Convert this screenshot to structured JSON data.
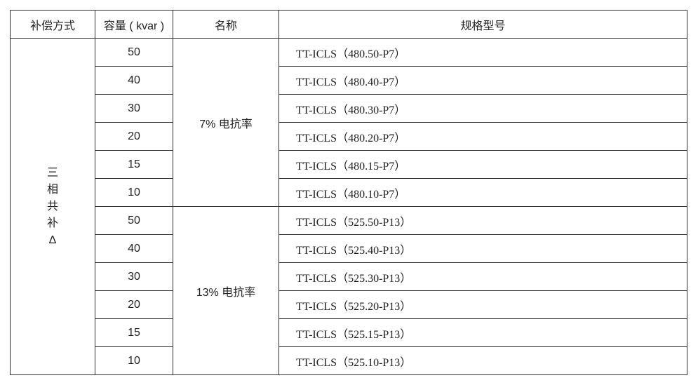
{
  "headers": [
    "补偿方式",
    "容量 ( kvar )",
    "名称",
    "规格型号"
  ],
  "mode_chars": [
    "三",
    "相",
    "共",
    "补",
    "Δ"
  ],
  "groups": [
    {
      "name": "7% 电抗率",
      "rows": [
        {
          "capacity": "50",
          "model": "TT-ICLS（480.50-P7）"
        },
        {
          "capacity": "40",
          "model": "TT-ICLS（480.40-P7）"
        },
        {
          "capacity": "30",
          "model": "TT-ICLS（480.30-P7）"
        },
        {
          "capacity": "20",
          "model": "TT-ICLS（480.20-P7）"
        },
        {
          "capacity": "15",
          "model": "TT-ICLS（480.15-P7）"
        },
        {
          "capacity": "10",
          "model": "TT-ICLS（480.10-P7）"
        }
      ]
    },
    {
      "name": "13% 电抗率",
      "rows": [
        {
          "capacity": "50",
          "model": "TT-ICLS（525.50-P13）"
        },
        {
          "capacity": "40",
          "model": "TT-ICLS（525.40-P13）"
        },
        {
          "capacity": "30",
          "model": "TT-ICLS（525.30-P13）"
        },
        {
          "capacity": "20",
          "model": "TT-ICLS（525.20-P13）"
        },
        {
          "capacity": "15",
          "model": "TT-ICLS（525.15-P13）"
        },
        {
          "capacity": "10",
          "model": "TT-ICLS（525.10-P13）"
        }
      ]
    }
  ]
}
